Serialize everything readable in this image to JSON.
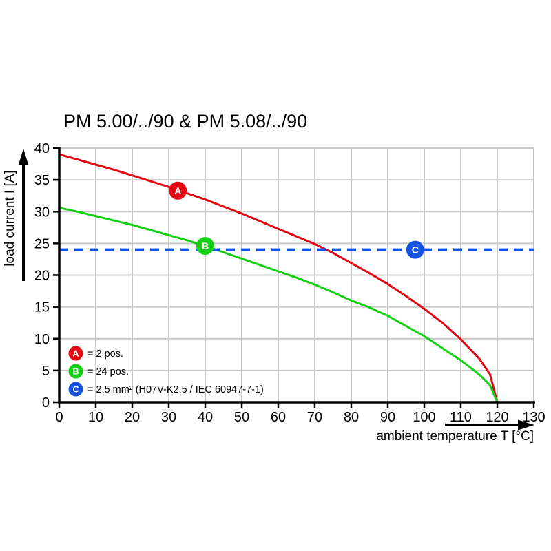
{
  "chart_data": {
    "type": "line",
    "title": "PM 5.00/../90 & PM 5.08/../90",
    "xlabel": "ambient temperature T [°C]",
    "ylabel": "load current I [A]",
    "xlim": [
      0,
      130
    ],
    "ylim": [
      0,
      40
    ],
    "x_ticks": [
      0,
      10,
      20,
      30,
      40,
      50,
      60,
      70,
      80,
      90,
      100,
      110,
      120,
      130
    ],
    "y_ticks": [
      0,
      5,
      10,
      15,
      20,
      25,
      30,
      35,
      40
    ],
    "grid": true,
    "grid_color": "#c8c8c8",
    "legend_position": "bottom-left-inside",
    "series": [
      {
        "id": "A",
        "legend_label": "= 2 pos.",
        "color": "#e30613",
        "line_style": "solid",
        "x": [
          0,
          5,
          10,
          15,
          20,
          25,
          30,
          35,
          40,
          45,
          50,
          55,
          60,
          65,
          70,
          75,
          80,
          85,
          90,
          95,
          100,
          105,
          110,
          115,
          118,
          120
        ],
        "y": [
          39,
          38.2,
          37.4,
          36.6,
          35.7,
          34.8,
          33.9,
          32.9,
          31.9,
          30.8,
          29.7,
          28.5,
          27.3,
          26.1,
          24.9,
          23.5,
          21.9,
          20.3,
          18.6,
          16.7,
          14.7,
          12.5,
          9.9,
          6.9,
          4.4,
          0
        ],
        "marker": {
          "letter": "A",
          "x": 32.5,
          "y": 33.3
        }
      },
      {
        "id": "B",
        "legend_label": "= 24 pos.",
        "color": "#15d115",
        "line_style": "solid",
        "x": [
          0,
          5,
          10,
          15,
          20,
          25,
          30,
          35,
          40,
          45,
          50,
          55,
          60,
          65,
          70,
          75,
          80,
          85,
          90,
          95,
          100,
          105,
          110,
          115,
          118,
          120
        ],
        "y": [
          30.6,
          30.0,
          29.3,
          28.6,
          27.9,
          27.1,
          26.3,
          25.5,
          24.6,
          23.6,
          22.6,
          21.6,
          20.6,
          19.6,
          18.5,
          17.3,
          16.0,
          14.9,
          13.6,
          12.0,
          10.4,
          8.5,
          6.6,
          4.4,
          2.7,
          0
        ],
        "marker": {
          "letter": "B",
          "x": 40,
          "y": 24.6
        }
      },
      {
        "id": "C",
        "legend_label": "= 2.5 mm² (H07V-K2.5 / IEC 60947-7-1)",
        "color": "#1553e0",
        "line_style": "dashed",
        "x": [
          0,
          130
        ],
        "y": [
          24,
          24
        ],
        "marker": {
          "letter": "C",
          "x": 97.5,
          "y": 24
        }
      }
    ]
  }
}
